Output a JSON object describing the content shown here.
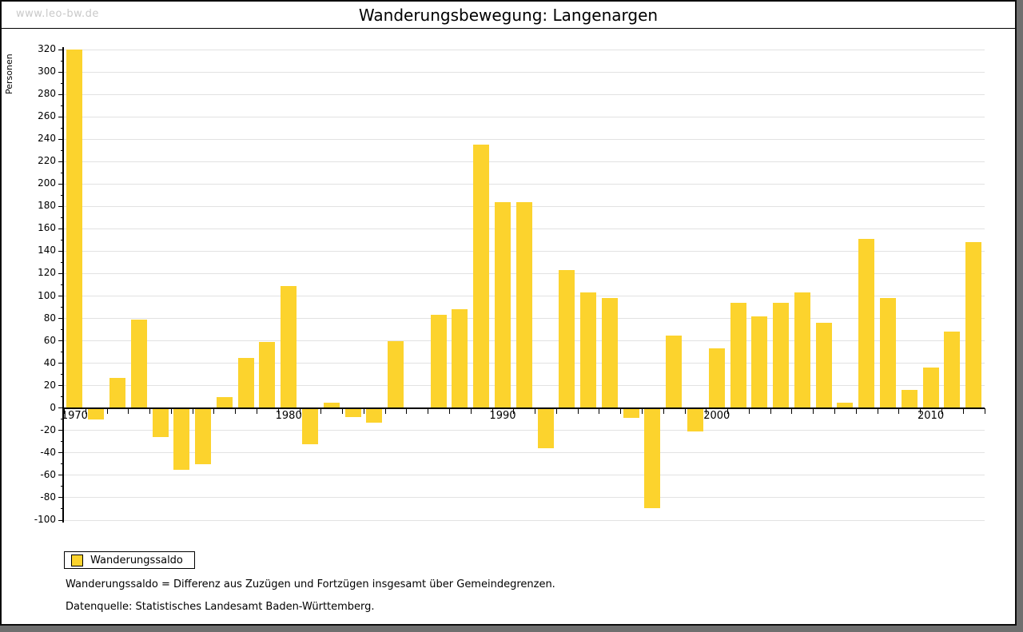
{
  "window": {
    "watermark": "www.leo-bw.de",
    "title": "Wanderungsbewegung: Langenargen"
  },
  "chart_data": {
    "type": "bar",
    "title": "Wanderungsbewegung: Langenargen",
    "xlabel": "",
    "ylabel": "Personen",
    "ylim": [
      -100,
      320
    ],
    "ytick_step": 20,
    "ytick_minor_step": 10,
    "grid": true,
    "legend_position": "bottom-left",
    "series_name": "Wanderungssaldo",
    "bar_color": "#FCD32D",
    "categories": [
      1970,
      1971,
      1972,
      1973,
      1974,
      1975,
      1976,
      1977,
      1978,
      1979,
      1980,
      1981,
      1982,
      1983,
      1984,
      1985,
      1986,
      1987,
      1988,
      1989,
      1990,
      1991,
      1992,
      1993,
      1994,
      1995,
      1996,
      1997,
      1998,
      1999,
      2000,
      2001,
      2002,
      2003,
      2004,
      2005,
      2006,
      2007,
      2008,
      2009,
      2010,
      2011,
      2012
    ],
    "values": [
      320,
      -10,
      27,
      79,
      -26,
      -55,
      -50,
      10,
      45,
      59,
      109,
      -32,
      5,
      -8,
      -13,
      60,
      0,
      83,
      88,
      235,
      184,
      184,
      -36,
      123,
      103,
      98,
      -9,
      -89,
      65,
      -21,
      53,
      94,
      82,
      94,
      103,
      76,
      5,
      151,
      98,
      16,
      36,
      68,
      148
    ],
    "x_decade_labels": [
      "1970",
      "1980",
      "1990",
      "2000",
      "2010"
    ]
  },
  "legend": {
    "label": "Wanderungssaldo"
  },
  "footnotes": {
    "line1": "Wanderungssaldo = Differenz aus Zuzügen und Fortzügen insgesamt über Gemeindegrenzen.",
    "line2": "Datenquelle: Statistisches Landesamt Baden-Württemberg."
  }
}
